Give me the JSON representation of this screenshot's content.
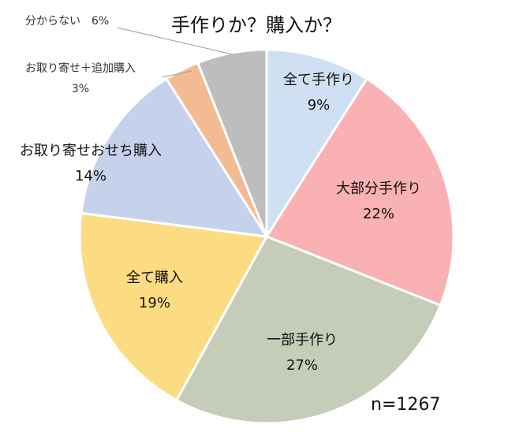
{
  "chart_data": {
    "type": "pie",
    "title": "手作りか？購入か？",
    "note": "n=1267",
    "slices": [
      {
        "label": "全て手作り",
        "pct_label": "9%",
        "value": 9,
        "color": "#cfe0f2"
      },
      {
        "label": "大部分手作り",
        "pct_label": "22%",
        "value": 22,
        "color": "#fab1b3"
      },
      {
        "label": "一部手作り",
        "pct_label": "27%",
        "value": 27,
        "color": "#c5cdb9"
      },
      {
        "label": "全て購入",
        "pct_label": "19%",
        "value": 19,
        "color": "#fcdc83"
      },
      {
        "label": "お取り寄せおせち購入",
        "pct_label": "14%",
        "value": 14,
        "color": "#c6d1ec"
      },
      {
        "label": "お取り寄せ＋追加購入",
        "pct_label": "3%",
        "value": 3,
        "color": "#f3bb94"
      },
      {
        "label": "分からない",
        "pct_label": "6%",
        "value": 6,
        "color": "#bdbdbd"
      }
    ]
  }
}
